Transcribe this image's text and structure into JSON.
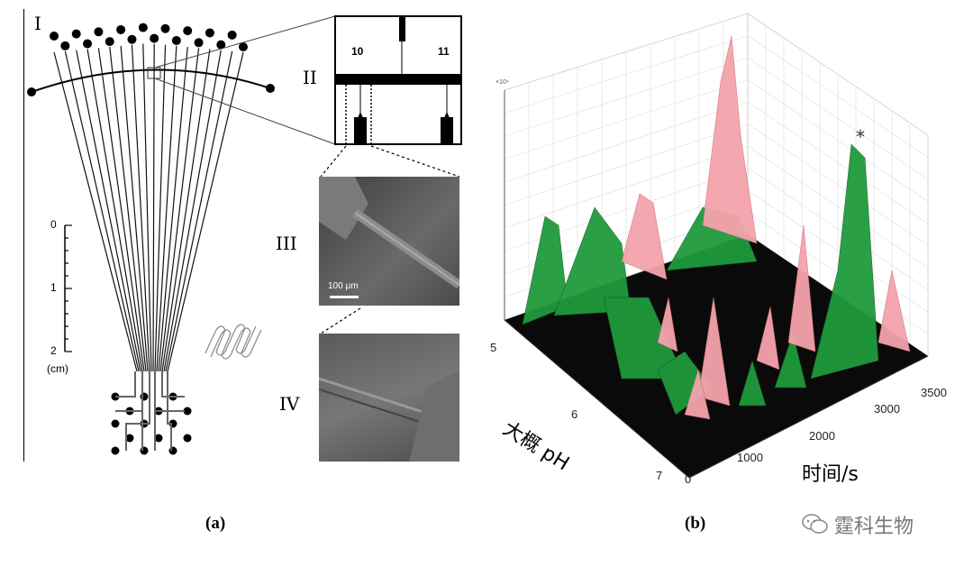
{
  "panel_a": {
    "label_I": "I",
    "label_II": "II",
    "label_III": "III",
    "label_IV": "IV",
    "inset_num_left": "10",
    "inset_num_right": "11",
    "scale_ticks": [
      "0",
      "1",
      "2"
    ],
    "scale_unit": "(cm)",
    "sem_scalebar": "100 μm",
    "caption": "(a)"
  },
  "panel_b": {
    "axis_x_label": "时间/s",
    "axis_y_label": "大概 pH",
    "x_ticks": [
      "0",
      "1000",
      "2000",
      "3000",
      "3500"
    ],
    "y_ticks": [
      "5",
      "6",
      "7"
    ],
    "peak_marker": "*",
    "z_exponent": "×10⁴",
    "caption": "(b)",
    "colors": {
      "pink": "#f4a3ab",
      "green": "#1f9a3c",
      "floor": "#0a0a0a"
    }
  },
  "watermark": {
    "text": "霆科生物"
  }
}
